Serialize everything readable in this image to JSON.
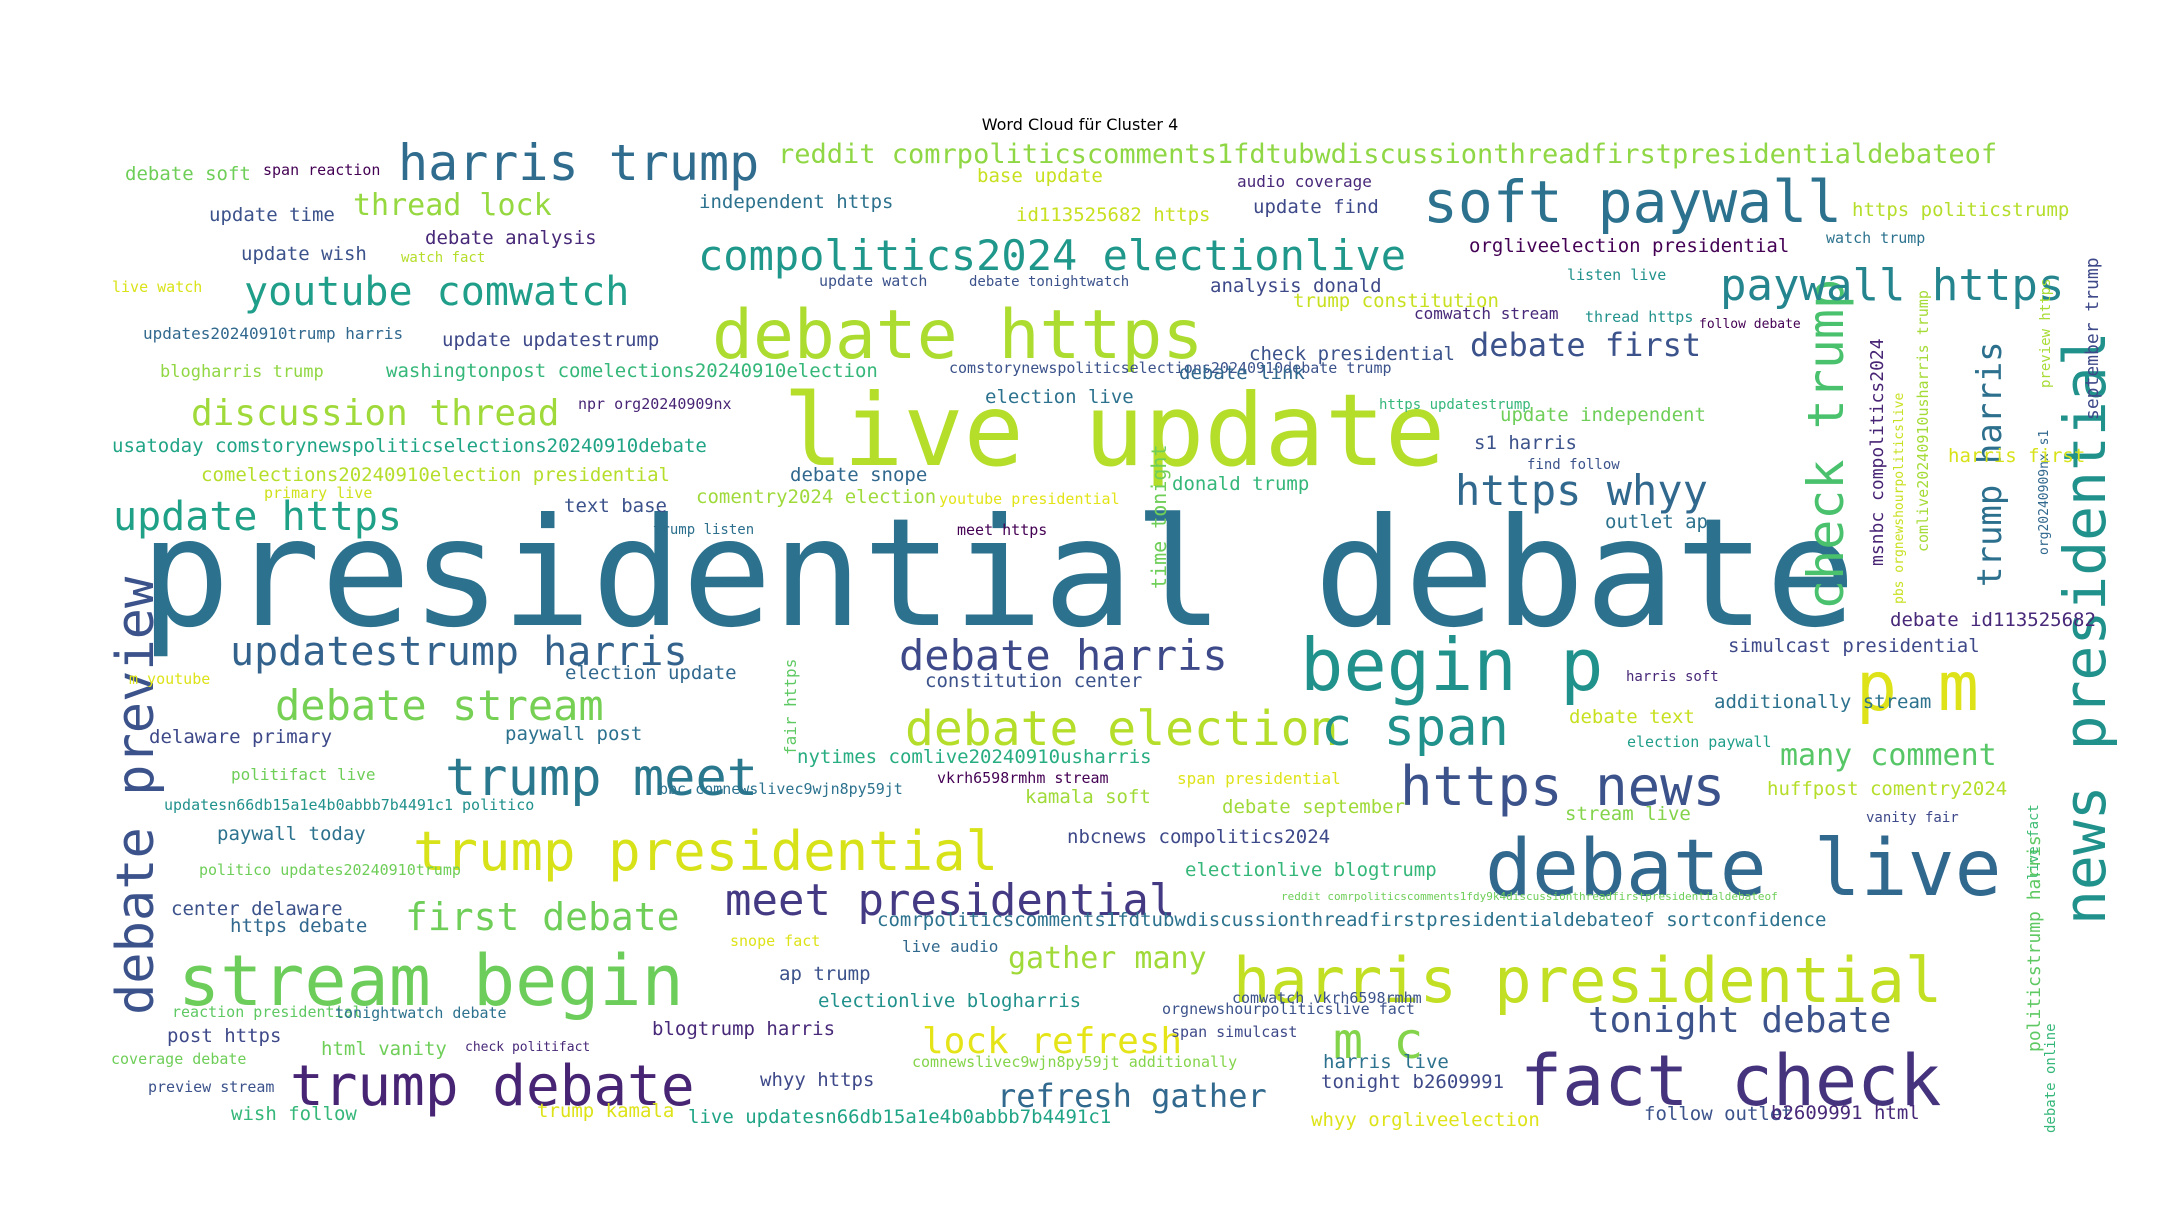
{
  "title": "Word Cloud für Cluster 4",
  "colormap": "viridis",
  "phrases": [
    {
      "text": "presidential debate",
      "color": "#2c728e"
    },
    {
      "text": "live update",
      "color": "#b5de2b"
    },
    {
      "text": "debate live",
      "color": "#31688e"
    },
    {
      "text": "fact check",
      "color": "#46337e"
    },
    {
      "text": "harris presidential",
      "color": "#c2df23"
    },
    {
      "text": "begin p",
      "color": "#21918c"
    },
    {
      "text": "debate https",
      "color": "#addc30"
    },
    {
      "text": "stream begin",
      "color": "#6ccd5a"
    },
    {
      "text": "soft paywall",
      "color": "#2c728e"
    },
    {
      "text": "news presidential",
      "color": "#21918c"
    },
    {
      "text": "https news",
      "color": "#3b528b"
    },
    {
      "text": "trump debate",
      "color": "#482475"
    },
    {
      "text": "trump presidential",
      "color": "#d8e219"
    },
    {
      "text": "debate preview",
      "color": "#3b528b"
    },
    {
      "text": "p m",
      "color": "#dde318"
    },
    {
      "text": "check trump",
      "color": "#4ac16d"
    },
    {
      "text": "trump meet",
      "color": "#2a788e"
    },
    {
      "text": "harris trump",
      "color": "#2f6c8e"
    },
    {
      "text": "debate election",
      "color": "#b5de2b"
    },
    {
      "text": "c span",
      "color": "#21918c"
    },
    {
      "text": "compolitics2024 electionlive",
      "color": "#1f988b"
    },
    {
      "text": "debate harris",
      "color": "#3e4989"
    },
    {
      "text": "meet presidential",
      "color": "#443a83"
    },
    {
      "text": "updatestrump harris",
      "color": "#33638d"
    },
    {
      "text": "debate stream",
      "color": "#75d054"
    },
    {
      "text": "m c",
      "color": "#84d44b"
    },
    {
      "text": "paywall https",
      "color": "#25858e"
    },
    {
      "text": "https whyy",
      "color": "#31688e"
    },
    {
      "text": "youtube comwatch",
      "color": "#1f9e89"
    },
    {
      "text": "update https",
      "color": "#1fa187"
    },
    {
      "text": "discussion thread",
      "color": "#9fda3a"
    },
    {
      "text": "first debate",
      "color": "#6ece58"
    },
    {
      "text": "tonight debate",
      "color": "#3b528b"
    },
    {
      "text": "trump harris",
      "color": "#2d708e"
    },
    {
      "text": "lock refresh",
      "color": "#e5e419"
    },
    {
      "text": "refresh gather",
      "color": "#31688e"
    },
    {
      "text": "thread lock",
      "color": "#95d840"
    },
    {
      "text": "debate first",
      "color": "#3b528b"
    },
    {
      "text": "reddit comrpoliticscomments1fdtubwdiscussionthreadfirstpresidentialdebateof",
      "color": "#8fd744"
    },
    {
      "text": "many comment",
      "color": "#56c667"
    },
    {
      "text": "gather many",
      "color": "#a0da39"
    },
    {
      "text": "msnbc compolitics2024",
      "color": "#482475"
    },
    {
      "text": "comlive20240910usharris trump",
      "color": "#a5db36"
    },
    {
      "text": "time tonight",
      "color": "#6ece58"
    },
    {
      "text": "fair https",
      "color": "#5ec962"
    },
    {
      "text": "politicstrump harris",
      "color": "#5ec962"
    },
    {
      "text": "september trump",
      "color": "#3e4989"
    },
    {
      "text": "preview https",
      "color": "#a8db34"
    },
    {
      "text": "org20240909nx s1",
      "color": "#31688e"
    },
    {
      "text": "pbs orgnewshourpoliticslive",
      "color": "#c8e020"
    },
    {
      "text": "live fact",
      "color": "#3dbc74"
    },
    {
      "text": "debate online",
      "color": "#35b779"
    },
    {
      "text": "debate soft",
      "color": "#6ece58"
    },
    {
      "text": "span reaction",
      "color": "#440154"
    },
    {
      "text": "update time",
      "color": "#3b528b"
    },
    {
      "text": "update wish",
      "color": "#3b528b"
    },
    {
      "text": "debate analysis",
      "color": "#482878"
    },
    {
      "text": "watch fact",
      "color": "#b5de2b"
    },
    {
      "text": "live watch",
      "color": "#dae319"
    },
    {
      "text": "updates20240910trump harris",
      "color": "#31688e"
    },
    {
      "text": "update updatestrump",
      "color": "#3e4989"
    },
    {
      "text": "blogharris trump",
      "color": "#90d743"
    },
    {
      "text": "washingtonpost comelections20240910election",
      "color": "#35b779"
    },
    {
      "text": "npr org20240909nx",
      "color": "#482475"
    },
    {
      "text": "usatoday comstorynewspoliticselections20240910debate",
      "color": "#20a486"
    },
    {
      "text": "comelections20240910election presidential",
      "color": "#b5de2b"
    },
    {
      "text": "debate snope",
      "color": "#31688e"
    },
    {
      "text": "primary live",
      "color": "#d0e11c"
    },
    {
      "text": "comentry2024 election",
      "color": "#9fda3a"
    },
    {
      "text": "youtube presidential",
      "color": "#e2e418"
    },
    {
      "text": "text base",
      "color": "#3b528b"
    },
    {
      "text": "trump listen",
      "color": "#2d708e"
    },
    {
      "text": "meet https",
      "color": "#440154"
    },
    {
      "text": "election live",
      "color": "#2c728e"
    },
    {
      "text": "m youtube",
      "color": "#dde318"
    },
    {
      "text": "election update",
      "color": "#31688e"
    },
    {
      "text": "constitution center",
      "color": "#3b528b"
    },
    {
      "text": "delaware primary",
      "color": "#3e4989"
    },
    {
      "text": "paywall post",
      "color": "#2c728e"
    },
    {
      "text": "politifact live",
      "color": "#6ece58"
    },
    {
      "text": "updatesn66db15a1e4b0abbb7b4491c1 politico",
      "color": "#21918c"
    },
    {
      "text": "paywall today",
      "color": "#2c728e"
    },
    {
      "text": "politico updates20240910trump",
      "color": "#6ece58"
    },
    {
      "text": "center delaware",
      "color": "#3b528b"
    },
    {
      "text": "https debate",
      "color": "#31688e"
    },
    {
      "text": "reaction presidential",
      "color": "#5ec962"
    },
    {
      "text": "tonightwatch debate",
      "color": "#2c728e"
    },
    {
      "text": "post https",
      "color": "#3e4989"
    },
    {
      "text": "html vanity",
      "color": "#6ece58"
    },
    {
      "text": "check politifact",
      "color": "#482878"
    },
    {
      "text": "coverage debate",
      "color": "#6ece58"
    },
    {
      "text": "preview stream",
      "color": "#3b528b"
    },
    {
      "text": "wish follow",
      "color": "#35b779"
    },
    {
      "text": "trump kamala",
      "color": "#dde318"
    },
    {
      "text": "live updatesn66db15a1e4b0abbb7b4491c1",
      "color": "#20a486"
    },
    {
      "text": "nytimes comlive20240910usharris",
      "color": "#27ad81"
    },
    {
      "text": "vkrh6598rmhm stream",
      "color": "#440154"
    },
    {
      "text": "bbc comnewslivec9wjn8py59jt",
      "color": "#2c728e"
    },
    {
      "text": "kamala soft",
      "color": "#a0da39"
    },
    {
      "text": "span presidential",
      "color": "#dde318"
    },
    {
      "text": "debate september",
      "color": "#a0da39"
    },
    {
      "text": "nbcnews compolitics2024",
      "color": "#3e4989"
    },
    {
      "text": "electionlive blogtrump",
      "color": "#35b779"
    },
    {
      "text": "comrpoliticscomments1fdtubwdiscussionthreadfirstpresidentialdebateof sortconfidence",
      "color": "#2c728e"
    },
    {
      "text": "snope fact",
      "color": "#dde318"
    },
    {
      "text": "live audio",
      "color": "#31688e"
    },
    {
      "text": "ap trump",
      "color": "#3b528b"
    },
    {
      "text": "electionlive blogharris",
      "color": "#21918c"
    },
    {
      "text": "blogtrump harris",
      "color": "#482878"
    },
    {
      "text": "span simulcast",
      "color": "#3e4989"
    },
    {
      "text": "comnewslivec9wjn8py59jt additionally",
      "color": "#84d44b"
    },
    {
      "text": "whyy https",
      "color": "#3e4989"
    },
    {
      "text": "orgnewshourpoliticslive fact",
      "color": "#3b528b"
    },
    {
      "text": "comwatch vkrh6598rmhm",
      "color": "#3b528b"
    },
    {
      "text": "reddit comrpoliticscomments1fdy9k4discussionthreadfirstpresidentialdebateof",
      "color": "#6ece58"
    },
    {
      "text": "harris live",
      "color": "#2c728e"
    },
    {
      "text": "tonight b2609991",
      "color": "#3e4989"
    },
    {
      "text": "whyy orgliveelection",
      "color": "#dde318"
    },
    {
      "text": "follow outlet",
      "color": "#3b528b"
    },
    {
      "text": "b2609991 html",
      "color": "#482878"
    },
    {
      "text": "base update",
      "color": "#c8e020"
    },
    {
      "text": "audio coverage",
      "color": "#482878"
    },
    {
      "text": "update find",
      "color": "#3e4989"
    },
    {
      "text": "https politicstrump",
      "color": "#b5de2b"
    },
    {
      "text": "independent https",
      "color": "#2c728e"
    },
    {
      "text": "id113525682 https",
      "color": "#c8e020"
    },
    {
      "text": "watch trump",
      "color": "#2c728e"
    },
    {
      "text": "orgliveelection presidential",
      "color": "#440154"
    },
    {
      "text": "listen live",
      "color": "#21918c"
    },
    {
      "text": "update watch",
      "color": "#3b528b"
    },
    {
      "text": "debate tonightwatch",
      "color": "#3b528b"
    },
    {
      "text": "analysis donald",
      "color": "#3e4989"
    },
    {
      "text": "trump constitution",
      "color": "#c8e020"
    },
    {
      "text": "comwatch stream",
      "color": "#482878"
    },
    {
      "text": "thread https",
      "color": "#21918c"
    },
    {
      "text": "follow debate",
      "color": "#440154"
    },
    {
      "text": "check presidential",
      "color": "#3b528b"
    },
    {
      "text": "comstorynewspoliticselections20240910debate trump",
      "color": "#3b528b"
    },
    {
      "text": "debate link",
      "color": "#31688e"
    },
    {
      "text": "https updatestrump",
      "color": "#35b779"
    },
    {
      "text": "update independent",
      "color": "#6ece58"
    },
    {
      "text": "s1 harris",
      "color": "#3b528b"
    },
    {
      "text": "find follow",
      "color": "#3b528b"
    },
    {
      "text": "harris first",
      "color": "#d8e219"
    },
    {
      "text": "donald trump",
      "color": "#35b779"
    },
    {
      "text": "outlet ap",
      "color": "#2c728e"
    },
    {
      "text": "debate id113525682",
      "color": "#482878"
    },
    {
      "text": "simulcast presidential",
      "color": "#3e4989"
    },
    {
      "text": "harris soft",
      "color": "#482878"
    },
    {
      "text": "debate text",
      "color": "#c8e020"
    },
    {
      "text": "additionally stream",
      "color": "#2c728e"
    },
    {
      "text": "election paywall",
      "color": "#1f9e89"
    },
    {
      "text": "huffpost comentry2024",
      "color": "#b5de2b"
    },
    {
      "text": "stream live",
      "color": "#84d44b"
    },
    {
      "text": "vanity fair",
      "color": "#3e4989"
    }
  ]
}
